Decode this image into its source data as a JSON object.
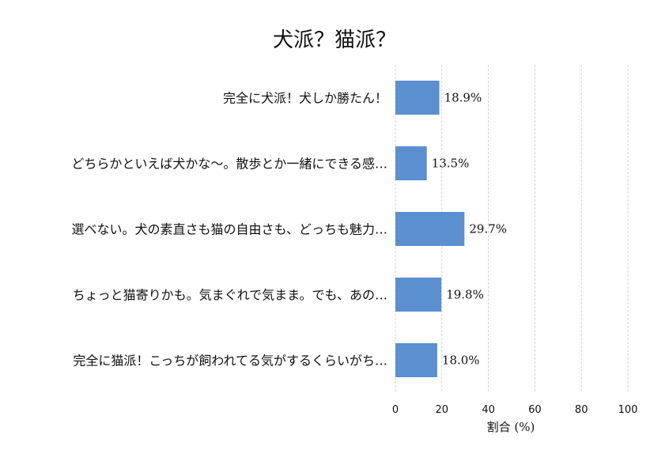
{
  "chart_data": {
    "type": "bar",
    "orientation": "horizontal",
    "title": "犬派？猫派？",
    "xlabel": "割合 (%)",
    "ylabel": "",
    "xlim": [
      0,
      100
    ],
    "x_ticks": [
      0,
      20,
      40,
      60,
      80,
      100
    ],
    "grid": "vertical-dashed",
    "bar_color": "#5B8FD0",
    "categories": [
      "完全に犬派！犬しか勝たん！",
      "どちらかといえば犬かな～。散歩とか一緒にできる感…",
      "選べない。犬の素直さも猫の自由さも、どっちも魅力…",
      "ちょっと猫寄りかも。気まぐれで気まま。でも、あの…",
      "完全に猫派！こっちが飼われてる気がするくらいがち…"
    ],
    "values": [
      18.9,
      13.5,
      29.7,
      19.8,
      18.0
    ],
    "value_labels": [
      "18.9%",
      "13.5%",
      "29.7%",
      "19.8%",
      "18.0%"
    ]
  }
}
